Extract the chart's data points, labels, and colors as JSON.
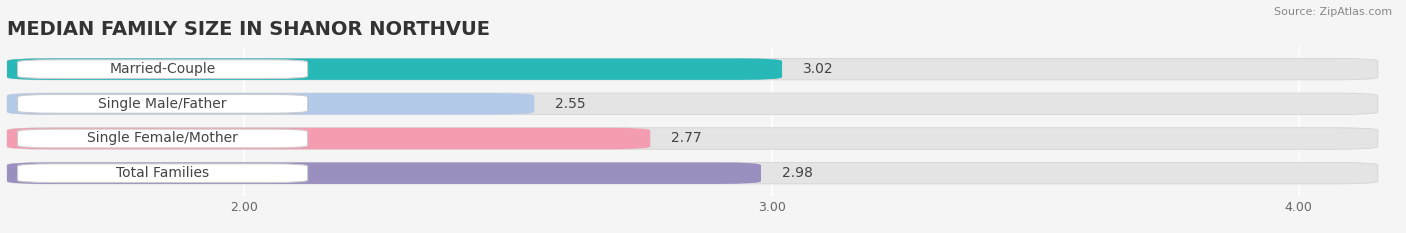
{
  "title": "MEDIAN FAMILY SIZE IN SHANOR NORTHVUE",
  "source": "Source: ZipAtlas.com",
  "categories": [
    "Married-Couple",
    "Single Male/Father",
    "Single Female/Mother",
    "Total Families"
  ],
  "values": [
    3.02,
    2.55,
    2.77,
    2.98
  ],
  "bar_colors": [
    "#29b8b8",
    "#b3c9e8",
    "#f49db0",
    "#9b8fc0"
  ],
  "xlim_left": 1.55,
  "xlim_right": 4.15,
  "xticks": [
    2.0,
    3.0,
    4.0
  ],
  "xtick_labels": [
    "2.00",
    "3.00",
    "4.00"
  ],
  "bar_height": 0.62,
  "background_color": "#f5f5f5",
  "bar_bg_color": "#e4e4e4",
  "title_fontsize": 14,
  "label_fontsize": 10,
  "value_fontsize": 10,
  "tick_fontsize": 9,
  "source_fontsize": 8
}
